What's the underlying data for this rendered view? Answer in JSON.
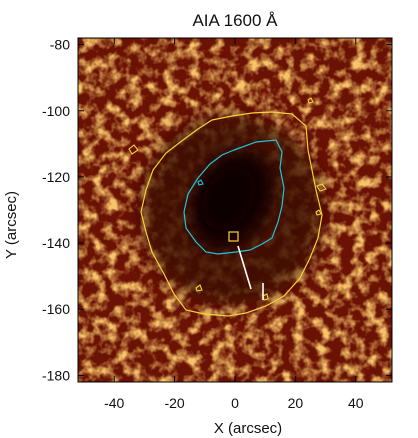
{
  "title": "AIA 1600 Å",
  "xlabel": "X (arcsec)",
  "ylabel": "Y (arcsec)",
  "x_range": [
    -52,
    52
  ],
  "y_range": [
    -182,
    -78
  ],
  "x_ticks": [
    {
      "value": -40,
      "label": "-40"
    },
    {
      "value": -20,
      "label": "-20"
    },
    {
      "value": 0,
      "label": "0"
    },
    {
      "value": 20,
      "label": "20"
    },
    {
      "value": 40,
      "label": "40"
    }
  ],
  "y_ticks": [
    {
      "value": -80,
      "label": "-80"
    },
    {
      "value": -100,
      "label": "-100"
    },
    {
      "value": -120,
      "label": "-120"
    },
    {
      "value": -140,
      "label": "-140"
    },
    {
      "value": -160,
      "label": "-160"
    },
    {
      "value": -180,
      "label": "-180"
    }
  ],
  "colors": {
    "outer_contour": "#f3d23c",
    "inner_contour": "#1fc4d8",
    "marker_box": "#f0c428",
    "pointer_line": "#ffffff",
    "umbra": "#160201",
    "background_dark": "#5a0c02",
    "background_bright": "#ff9a28"
  },
  "features": {
    "umbra_center": [
      -4,
      -131
    ],
    "marker_box_center": [
      -4.5,
      -138
    ],
    "pointer_line": {
      "from": [
        -3,
        -140
      ],
      "to": [
        3,
        -155
      ]
    },
    "end_tick": {
      "from": [
        4,
        -152
      ],
      "to": [
        4,
        -158
      ]
    }
  }
}
